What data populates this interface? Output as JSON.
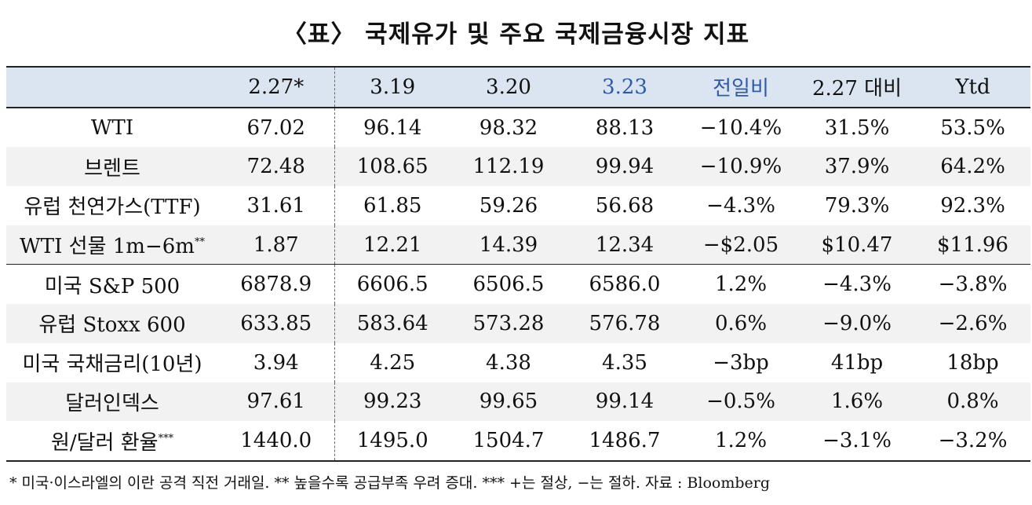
{
  "title": "〈표〉 국제유가 및 주요 국제금융시장 지표",
  "accent_color": "#2e5aa8",
  "header_bg": "#dbe5f1",
  "table": {
    "headers": [
      "",
      "2.27*",
      "3.19",
      "3.20",
      "3.23",
      "전일비",
      "2.27 대비",
      "Ytd"
    ],
    "rows": [
      {
        "label": "WTI",
        "sup": "",
        "values": [
          "67.02",
          "96.14",
          "98.32",
          "88.13",
          "−10.4%",
          "31.5%",
          "53.5%"
        ]
      },
      {
        "label": "브렌트",
        "sup": "",
        "values": [
          "72.48",
          "108.65",
          "112.19",
          "99.94",
          "−10.9%",
          "37.9%",
          "64.2%"
        ]
      },
      {
        "label": "유럽 천연가스(TTF)",
        "sup": "",
        "values": [
          "31.61",
          "61.85",
          "59.26",
          "56.68",
          "−4.3%",
          "79.3%",
          "92.3%"
        ]
      },
      {
        "label": "WTI 선물 1m−6m",
        "sup": "**",
        "values": [
          "1.87",
          "12.21",
          "14.39",
          "12.34",
          "−$2.05",
          "$10.47",
          "$11.96"
        ]
      },
      {
        "label": "미국 S&P 500",
        "sup": "",
        "values": [
          "6878.9",
          "6606.5",
          "6506.5",
          "6586.0",
          "1.2%",
          "−4.3%",
          "−3.8%"
        ]
      },
      {
        "label": "유럽 Stoxx 600",
        "sup": "",
        "values": [
          "633.85",
          "583.64",
          "573.28",
          "576.78",
          "0.6%",
          "−9.0%",
          "−2.6%"
        ]
      },
      {
        "label": "미국 국채금리(10년)",
        "sup": "",
        "values": [
          "3.94",
          "4.25",
          "4.38",
          "4.35",
          "−3bp",
          "41bp",
          "18bp"
        ]
      },
      {
        "label": "달러인덱스",
        "sup": "",
        "values": [
          "97.61",
          "99.23",
          "99.65",
          "99.14",
          "−0.5%",
          "1.6%",
          "0.8%"
        ]
      },
      {
        "label": "원/달러 환율",
        "sup": "***",
        "values": [
          "1440.0",
          "1495.0",
          "1504.7",
          "1486.7",
          "1.2%",
          "−3.1%",
          "−3.2%"
        ]
      }
    ]
  },
  "footnote": "* 미국·이스라엘의 이란 공격 직전 거래일. ** 높을수록 공급부족 우려 증대. *** +는 절상, −는 절하. 자료 : Bloomberg"
}
